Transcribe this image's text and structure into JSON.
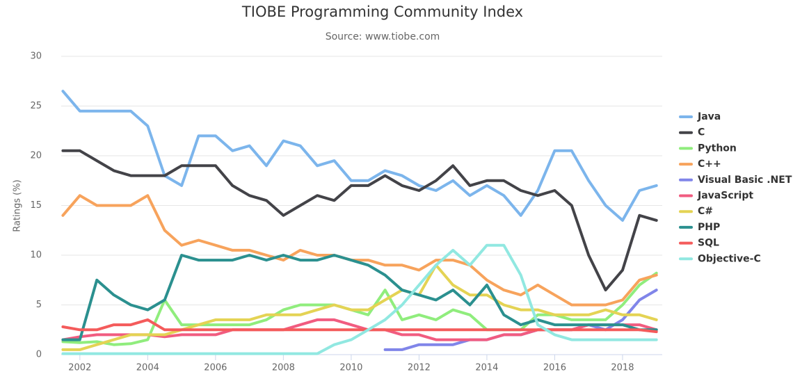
{
  "chart_data": {
    "type": "line",
    "title": "TIOBE Programming Community Index",
    "subtitle": "Source: www.tiobe.com",
    "y_label": "Ratings (%)",
    "x": [
      2001.5,
      2002,
      2002.5,
      2003,
      2003.5,
      2004,
      2004.5,
      2005,
      2005.5,
      2006,
      2006.5,
      2007,
      2007.5,
      2008,
      2008.5,
      2009,
      2009.5,
      2010,
      2010.5,
      2011,
      2011.5,
      2012,
      2012.5,
      2013,
      2013.5,
      2014,
      2014.5,
      2015,
      2015.5,
      2016,
      2016.5,
      2017,
      2017.5,
      2018,
      2018.5,
      2019
    ],
    "xlim": [
      2001.45,
      2019.17
    ],
    "xticks": [
      2002,
      2004,
      2006,
      2008,
      2010,
      2012,
      2014,
      2016,
      2018
    ],
    "ylim": [
      0,
      30
    ],
    "yticks": [
      0,
      5,
      10,
      15,
      20,
      25,
      30
    ],
    "grid": true,
    "legend": "right",
    "series": [
      {
        "name": "Java",
        "color": "#7cb5ec",
        "values": [
          26.5,
          24.5,
          24.5,
          24.5,
          24.5,
          23,
          18,
          17,
          22,
          22,
          20.5,
          21,
          19,
          21.5,
          21,
          19,
          19.5,
          17.5,
          17.5,
          18.5,
          18,
          17,
          16.5,
          17.5,
          16,
          17,
          16,
          14,
          16.5,
          20.5,
          20.5,
          17.5,
          15,
          13.5,
          16.5,
          17
        ]
      },
      {
        "name": "C",
        "color": "#434348",
        "values": [
          20.5,
          20.5,
          19.5,
          18.5,
          18,
          18,
          18,
          19,
          19,
          19,
          17,
          16,
          15.5,
          14,
          15,
          16,
          15.5,
          17,
          17,
          18,
          17,
          16.5,
          17.5,
          19,
          17,
          17.5,
          17.5,
          16.5,
          16,
          16.5,
          15,
          10,
          6.5,
          8.5,
          14,
          13.5
        ]
      },
      {
        "name": "Python",
        "color": "#90ed7d",
        "values": [
          1.3,
          1.2,
          1.3,
          1,
          1.1,
          1.5,
          5.5,
          3,
          3,
          3,
          3,
          3,
          3.5,
          4.5,
          5,
          5,
          5,
          4.5,
          4,
          6.5,
          3.5,
          4,
          3.5,
          4.5,
          4,
          2.5,
          2.5,
          2.5,
          4,
          4,
          3.5,
          3.5,
          3.5,
          5,
          7,
          8.2
        ]
      },
      {
        "name": "C++",
        "color": "#f7a35c",
        "values": [
          14,
          16,
          15,
          15,
          15,
          16,
          12.5,
          11,
          11.5,
          11,
          10.5,
          10.5,
          10,
          9.5,
          10.5,
          10,
          10,
          9.5,
          9.5,
          9,
          9,
          8.5,
          9.5,
          9.5,
          9,
          7.5,
          6.5,
          6,
          7,
          6,
          5,
          5,
          5,
          5.5,
          7.5,
          8
        ]
      },
      {
        "name": "Visual Basic .NET",
        "color": "#8085e9",
        "values": [
          null,
          null,
          null,
          null,
          null,
          null,
          null,
          null,
          null,
          null,
          null,
          null,
          null,
          null,
          null,
          null,
          null,
          null,
          null,
          0.5,
          0.5,
          1,
          1,
          1,
          1.5,
          1.5,
          2,
          2,
          2.5,
          2.5,
          2.5,
          3,
          2.5,
          3.5,
          5.5,
          6.5
        ]
      },
      {
        "name": "JavaScript",
        "color": "#f15c80",
        "values": [
          1.5,
          1.8,
          2,
          2,
          2,
          2,
          1.8,
          2,
          2,
          2,
          2.5,
          2.5,
          2.5,
          2.5,
          3,
          3.5,
          3.5,
          3,
          2.5,
          2.5,
          2,
          2,
          1.5,
          1.5,
          1.5,
          1.5,
          2,
          2,
          2.5,
          2.5,
          2.5,
          3,
          3,
          3,
          3,
          2.5
        ]
      },
      {
        "name": "C#",
        "color": "#e4d354",
        "values": [
          0.5,
          0.5,
          1,
          1.5,
          2,
          2,
          2,
          2.5,
          3,
          3.5,
          3.5,
          3.5,
          4,
          4,
          4,
          4.5,
          5,
          4.5,
          4.5,
          5.5,
          6.5,
          6,
          9,
          7,
          6,
          6,
          5,
          4.5,
          4.5,
          4,
          4,
          4,
          4.5,
          4,
          4,
          3.5
        ]
      },
      {
        "name": "PHP",
        "color": "#2b908f",
        "values": [
          1.5,
          1.5,
          7.5,
          6,
          5,
          4.5,
          5.5,
          10,
          9.5,
          9.5,
          9.5,
          10,
          9.5,
          10,
          9.5,
          9.5,
          10,
          9.5,
          9,
          8,
          6.5,
          6,
          5.5,
          6.5,
          5,
          7,
          4,
          3,
          3.5,
          3,
          3,
          3,
          3,
          3,
          2.5,
          2.5
        ]
      },
      {
        "name": "SQL",
        "color": "#f45b5b",
        "values": [
          2.8,
          2.5,
          2.5,
          3,
          3,
          3.5,
          2.5,
          2.5,
          2.5,
          2.5,
          2.5,
          2.5,
          2.5,
          2.5,
          2.5,
          2.5,
          2.5,
          2.5,
          2.5,
          2.5,
          2.5,
          2.5,
          2.5,
          2.5,
          2.5,
          2.5,
          2.5,
          2.5,
          2.5,
          2.5,
          2.5,
          2.5,
          2.5,
          2.5,
          2.5,
          2.3
        ]
      },
      {
        "name": "Objective-C",
        "color": "#91e8e1",
        "values": [
          0.1,
          0.1,
          0.1,
          0.1,
          0.1,
          0.1,
          0.1,
          0.1,
          0.1,
          0.1,
          0.1,
          0.1,
          0.1,
          0.1,
          0.1,
          0.1,
          1,
          1.5,
          2.5,
          3.5,
          5,
          7,
          9,
          10.5,
          9,
          11,
          11,
          8,
          3,
          2,
          1.5,
          1.5,
          1.5,
          1.5,
          1.5,
          1.5
        ]
      }
    ]
  }
}
